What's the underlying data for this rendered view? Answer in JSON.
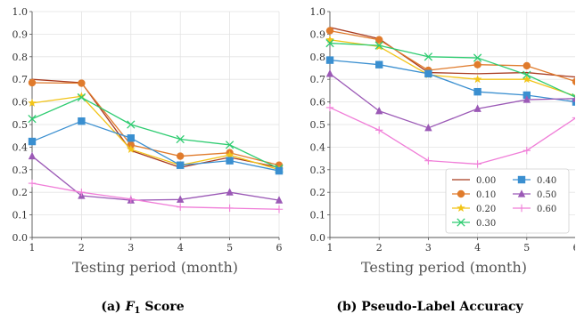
{
  "chart_data": [
    {
      "type": "line",
      "caption": "(a) F1 Score",
      "xlabel": "Testing period (month)",
      "ylabel": "",
      "x": [
        1,
        2,
        3,
        4,
        5,
        6
      ],
      "xlim": [
        1,
        6
      ],
      "ylim": [
        0,
        1
      ],
      "xticks": [
        "1",
        "2",
        "3",
        "4",
        "5",
        "6"
      ],
      "yticks": [
        "0.0",
        "0.1",
        "0.2",
        "0.3",
        "0.4",
        "0.5",
        "0.6",
        "0.7",
        "0.8",
        "0.9",
        "1.0"
      ],
      "grid": true,
      "series": [
        {
          "name": "0.00",
          "color": "#a83a1f",
          "marker": "none",
          "values": [
            0.7,
            0.685,
            0.385,
            0.31,
            0.355,
            0.31
          ]
        },
        {
          "name": "0.10",
          "color": "#e07b2c",
          "marker": "circle",
          "values": [
            0.685,
            0.683,
            0.41,
            0.36,
            0.375,
            0.32
          ]
        },
        {
          "name": "0.20",
          "color": "#f2c418",
          "marker": "star",
          "values": [
            0.595,
            0.625,
            0.39,
            0.32,
            0.365,
            0.3
          ]
        },
        {
          "name": "0.30",
          "color": "#2ecc71",
          "marker": "x",
          "values": [
            0.525,
            0.62,
            0.5,
            0.435,
            0.41,
            0.305
          ]
        },
        {
          "name": "0.40",
          "color": "#3a8fd0",
          "marker": "square",
          "values": [
            0.425,
            0.515,
            0.44,
            0.32,
            0.34,
            0.295
          ]
        },
        {
          "name": "0.50",
          "color": "#9b59b6",
          "marker": "triangle",
          "values": [
            0.36,
            0.185,
            0.165,
            0.168,
            0.2,
            0.165
          ]
        },
        {
          "name": "0.60",
          "color": "#f07ed8",
          "marker": "plus",
          "values": [
            0.24,
            0.2,
            0.17,
            0.135,
            0.13,
            0.125
          ]
        }
      ]
    },
    {
      "type": "line",
      "caption": "(b) Pseudo-Label Accuracy",
      "xlabel": "Testing period (month)",
      "ylabel": "",
      "x": [
        1,
        2,
        3,
        4,
        5,
        6
      ],
      "xlim": [
        1,
        6
      ],
      "ylim": [
        0,
        1
      ],
      "xticks": [
        "1",
        "2",
        "3",
        "4",
        "5",
        "6"
      ],
      "yticks": [
        "0.0",
        "0.1",
        "0.2",
        "0.3",
        "0.4",
        "0.5",
        "0.6",
        "0.7",
        "0.8",
        "0.9",
        "1.0"
      ],
      "grid": true,
      "legend": {
        "position": "bottom-right",
        "columns": 2
      },
      "series": [
        {
          "name": "0.00",
          "color": "#a83a1f",
          "marker": "none",
          "values": [
            0.93,
            0.88,
            0.73,
            0.725,
            0.73,
            0.71
          ]
        },
        {
          "name": "0.10",
          "color": "#e07b2c",
          "marker": "circle",
          "values": [
            0.915,
            0.875,
            0.74,
            0.765,
            0.76,
            0.69
          ]
        },
        {
          "name": "0.20",
          "color": "#f2c418",
          "marker": "star",
          "values": [
            0.875,
            0.845,
            0.72,
            0.7,
            0.7,
            0.625
          ]
        },
        {
          "name": "0.30",
          "color": "#2ecc71",
          "marker": "x",
          "values": [
            0.86,
            0.85,
            0.8,
            0.795,
            0.72,
            0.62
          ]
        },
        {
          "name": "0.40",
          "color": "#3a8fd0",
          "marker": "square",
          "values": [
            0.785,
            0.765,
            0.725,
            0.645,
            0.63,
            0.6
          ]
        },
        {
          "name": "0.50",
          "color": "#9b59b6",
          "marker": "triangle",
          "values": [
            0.725,
            0.56,
            0.485,
            0.57,
            0.61,
            0.615
          ]
        },
        {
          "name": "0.60",
          "color": "#f07ed8",
          "marker": "plus",
          "values": [
            0.575,
            0.475,
            0.34,
            0.325,
            0.385,
            0.53
          ]
        }
      ]
    }
  ]
}
